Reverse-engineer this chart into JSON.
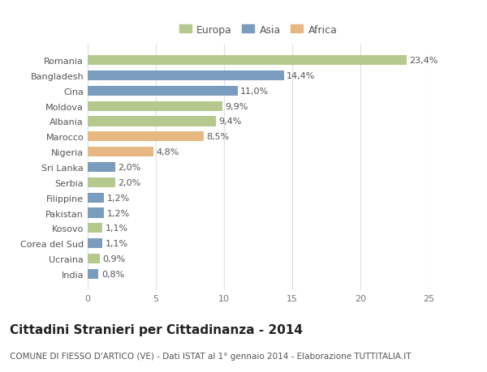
{
  "categories": [
    "Romania",
    "Bangladesh",
    "Cina",
    "Moldova",
    "Albania",
    "Marocco",
    "Nigeria",
    "Sri Lanka",
    "Serbia",
    "Filippine",
    "Pakistan",
    "Kosovo",
    "Corea del Sud",
    "Ucraina",
    "India"
  ],
  "values": [
    23.4,
    14.4,
    11.0,
    9.9,
    9.4,
    8.5,
    4.8,
    2.0,
    2.0,
    1.2,
    1.2,
    1.1,
    1.1,
    0.9,
    0.8
  ],
  "labels": [
    "23,4%",
    "14,4%",
    "11,0%",
    "9,9%",
    "9,4%",
    "8,5%",
    "4,8%",
    "2,0%",
    "2,0%",
    "1,2%",
    "1,2%",
    "1,1%",
    "1,1%",
    "0,9%",
    "0,8%"
  ],
  "continents": [
    "Europa",
    "Asia",
    "Asia",
    "Europa",
    "Europa",
    "Africa",
    "Africa",
    "Asia",
    "Europa",
    "Asia",
    "Asia",
    "Europa",
    "Asia",
    "Europa",
    "Asia"
  ],
  "colors": {
    "Europa": "#b5c98e",
    "Asia": "#7a9cbf",
    "Africa": "#e8b882"
  },
  "title": "Cittadini Stranieri per Cittadinanza - 2014",
  "subtitle": "COMUNE DI FIESSO D'ARTICO (VE) - Dati ISTAT al 1° gennaio 2014 - Elaborazione TUTTITALIA.IT",
  "xlim": [
    0,
    25
  ],
  "xticks": [
    0,
    5,
    10,
    15,
    20,
    25
  ],
  "background_color": "#ffffff",
  "grid_color": "#e0e0e0",
  "bar_height": 0.65,
  "title_fontsize": 11,
  "subtitle_fontsize": 7.5,
  "label_fontsize": 8,
  "tick_fontsize": 8,
  "legend_fontsize": 9
}
